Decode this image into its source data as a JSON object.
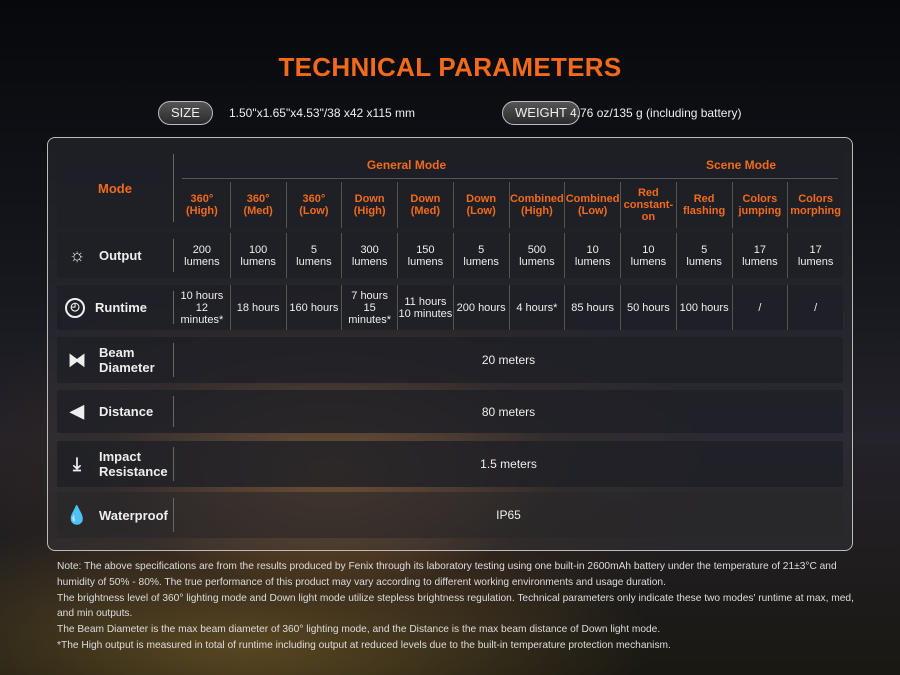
{
  "title": "TECHNICAL PARAMETERS",
  "size": {
    "label": "SIZE",
    "value": "1.50\"x1.65\"x4.53\"/38 x42 x115 mm"
  },
  "weight": {
    "label": "WEIGHT",
    "value": "4.76 oz/135 g (including battery)"
  },
  "table": {
    "mode_label": "Mode",
    "groups": [
      "General Mode",
      "Scene Mode"
    ],
    "modes": [
      "360°\n(High)",
      "360°\n(Med)",
      "360°\n(Low)",
      "Down\n(High)",
      "Down\n(Med)",
      "Down\n(Low)",
      "Combined\n(High)",
      "Combined\n(Low)",
      "Red\nconstant-\non",
      "Red\nflashing",
      "Colors\njumping",
      "Colors\nmorphing"
    ],
    "output": {
      "label": "Output",
      "icon": "sun-icon",
      "values": [
        "200\nlumens",
        "100\nlumens",
        "5\nlumens",
        "300\nlumens",
        "150\nlumens",
        "5\nlumens",
        "500\nlumens",
        "10\nlumens",
        "10\nlumens",
        "5\nlumens",
        "17\nlumens",
        "17\nlumens"
      ]
    },
    "runtime": {
      "label": "Runtime",
      "icon": "clock-icon",
      "values": [
        "10 hours\n12 minutes*",
        "18 hours",
        "160 hours",
        "7 hours\n15 minutes*",
        "11 hours\n10 minutes",
        "200 hours",
        "4 hours*",
        "85 hours",
        "50 hours",
        "100 hours",
        "/",
        "/"
      ]
    },
    "beam": {
      "label": "Beam\nDiameter",
      "icon": "beam-icon",
      "value": "20 meters"
    },
    "distance": {
      "label": "Distance",
      "icon": "distance-icon",
      "value": "80 meters"
    },
    "impact": {
      "label": "Impact\nResistance",
      "icon": "impact-icon",
      "value": "1.5 meters"
    },
    "waterproof": {
      "label": "Waterproof",
      "icon": "water-drops-icon",
      "value": "IP65"
    }
  },
  "notes": [
    "Note: The above specifications are from the results produced by Fenix through its laboratory testing using one built-in 2600mAh battery under the temperature of 21±3°C and humidity of 50% - 80%. The true performance of this product may vary according to different working environments and usage duration.",
    "The brightness level of 360° lighting mode and Down light mode utilize stepless brightness regulation. Technical parameters only indicate these two modes' runtime at max, med, and min outputs.",
    "The Beam Diameter is the max beam diameter of 360° lighting mode, and the Distance is the max beam distance of Down light mode.",
    "*The High output is measured in total of runtime including output at reduced levels due to the built-in temperature protection mechanism."
  ]
}
